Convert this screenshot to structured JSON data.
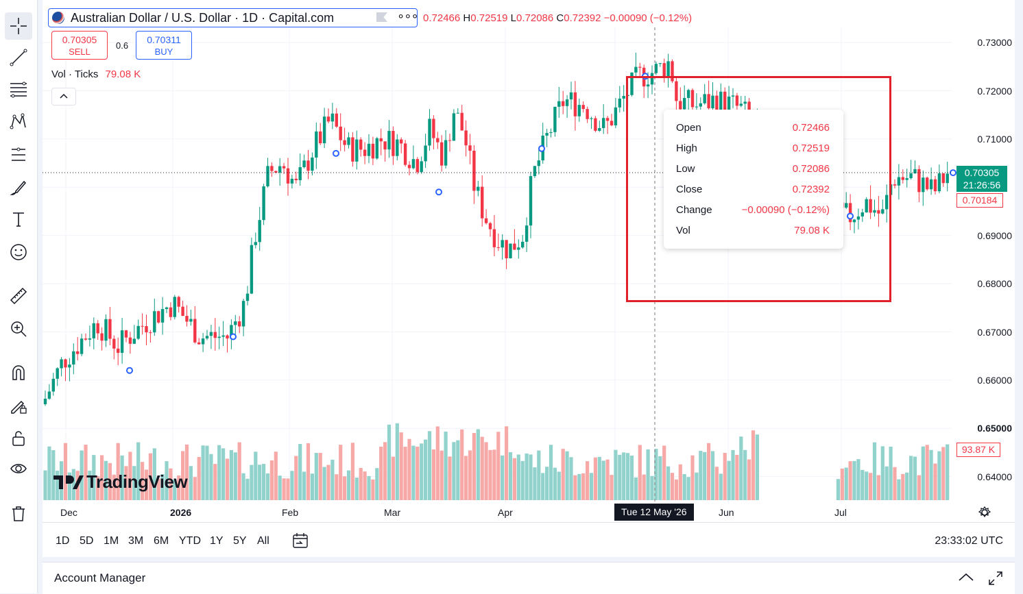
{
  "symbol": {
    "title": "Australian Dollar / U.S. Dollar · 1D · Capital.com",
    "more": "∘∘∘"
  },
  "ohlc": {
    "o_key": "O",
    "o_val": "0.72466",
    "h_key": "H",
    "h_val": "0.72519",
    "l_key": "L",
    "l_val": "0.72086",
    "c_key": "C",
    "c_val": "0.72392",
    "change": "−0.00090 (−0.12%)"
  },
  "trade": {
    "sell_price": "0.70305",
    "sell_label": "SELL",
    "spread": "0.6",
    "buy_price": "0.70311",
    "buy_label": "BUY"
  },
  "volume_indicator": {
    "label": "Vol · Ticks",
    "value": "79.08 K"
  },
  "tooltip": {
    "open_label": "Open",
    "open": "0.72466",
    "high_label": "High",
    "high": "0.72519",
    "low_label": "Low",
    "low": "0.72086",
    "close_label": "Close",
    "close": "0.72392",
    "change_label": "Change",
    "change": "−0.00090 (−0.12%)",
    "vol_label": "Vol",
    "vol": "79.08 K"
  },
  "price_axis": {
    "ticks": [
      "0.73000",
      "0.72000",
      "0.71000",
      "0.69000",
      "0.68000",
      "0.67000",
      "0.66000",
      "0.65000",
      "0.64000"
    ],
    "current_price": "0.70305",
    "countdown": "21:26:56",
    "prev_close": "0.70184",
    "volume_tag": "93.87 K"
  },
  "time_axis": {
    "labels": [
      "Dec",
      "2026",
      "Feb",
      "Mar",
      "Apr",
      "Jun",
      "Jul"
    ],
    "crosshair_date": "Tue 12 May '26"
  },
  "range_buttons": [
    "1D",
    "5D",
    "1M",
    "3M",
    "6M",
    "YTD",
    "1Y",
    "5Y",
    "All"
  ],
  "clock": "23:33:02 UTC",
  "watermark": "TradingView",
  "account_manager": {
    "label": "Account Manager"
  },
  "colors": {
    "up": "#089981",
    "down": "#f23645",
    "vol_up": "#92d2cc",
    "vol_down": "#f7a9a7",
    "accent": "#2962ff",
    "annotation": "#e0202a"
  },
  "tools": [
    "crosshair-icon",
    "trend-line-icon",
    "fib-icon",
    "pattern-icon",
    "forecast-icon",
    "brush-icon",
    "text-icon",
    "emoji-icon",
    "ruler-icon",
    "zoom-in-icon",
    "magnet-icon",
    "lock-drawing-icon",
    "lock-icon",
    "eye-icon",
    "trash-icon"
  ],
  "chart_data": {
    "type": "candlestick",
    "y_range": [
      0.635,
      0.733
    ],
    "x_labels": [
      "Dec",
      "2026",
      "Feb",
      "Mar",
      "Apr",
      "May",
      "Jun",
      "Jul"
    ],
    "series": [
      {
        "x": "Dec",
        "y": 0.655
      },
      {
        "x": "Dec",
        "y": 0.664
      },
      {
        "x": "2026",
        "y": 0.672
      },
      {
        "x": "2026",
        "y": 0.668
      },
      {
        "x": "Feb",
        "y": 0.705
      },
      {
        "x": "Feb",
        "y": 0.715
      },
      {
        "x": "Mar",
        "y": 0.711
      },
      {
        "x": "Mar",
        "y": 0.709
      },
      {
        "x": "Apr",
        "y": 0.686
      },
      {
        "x": "Apr",
        "y": 0.711
      },
      {
        "x": "May",
        "y": 0.724
      },
      {
        "x": "Jun",
        "y": 0.717
      },
      {
        "x": "Jul",
        "y": 0.693
      },
      {
        "x": "Jul",
        "y": 0.703
      }
    ],
    "volume_range": [
      0,
      110000
    ]
  }
}
